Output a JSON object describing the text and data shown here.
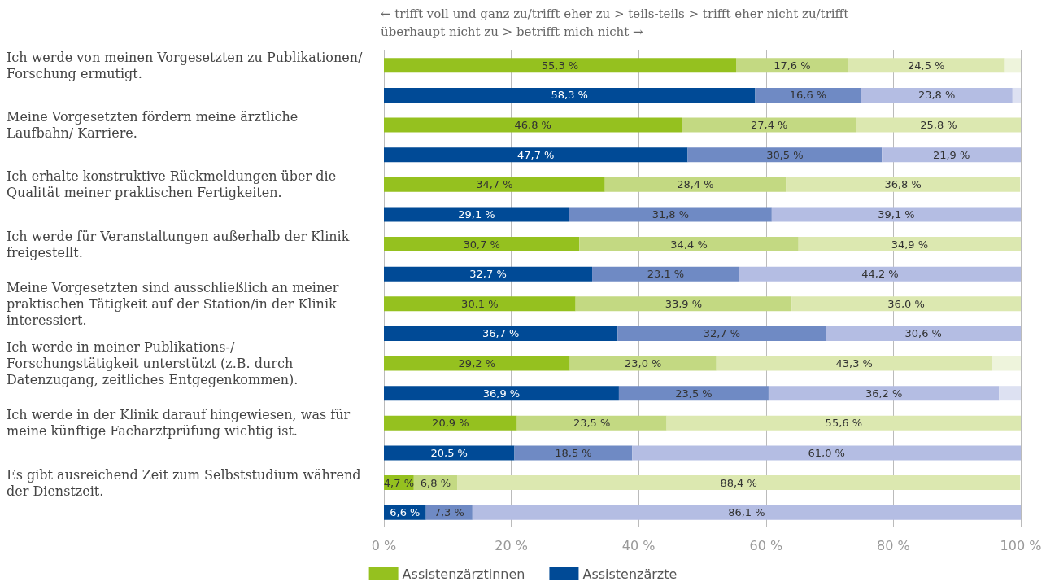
{
  "chart_data": {
    "type": "bar",
    "orientation": "horizontal",
    "stacked": true,
    "annotations": [
      "← trifft voll und ganz zu/trifft eher zu > teils-teils > trifft eher nicht zu/trifft überhaupt nicht zu > betrifft mich nicht →"
    ],
    "categories": [
      "Ich werde von meinen Vorgesetzten zu Publikationen/ Forschung ermutigt.",
      null,
      "Meine Vorgesetzten fördern meine ärztliche Laufbahn/ Karriere.",
      null,
      "Ich erhalte konstruktive Rückmeldungen über die Qualität meiner praktischen Fertigkeiten.",
      null,
      "Ich werde für Veranstaltungen außerhalb der Klinik freigestellt.",
      null,
      "Meine Vorgesetzten sind ausschließlich an meiner praktischen Tätigkeit auf der Station/in der Klinik interessiert.",
      null,
      "Ich werde in meiner Publikations-/Forschungstätigkeit unterstützt (z.B. durch Datenzugang, zeitliches Entgegenkommen).",
      null,
      "Ich werde in der Klinik darauf hingewiesen, was für meine künftige Facharztprüfung wichtig ist.",
      null,
      "Es gibt ausreichend Zeit zum Selbststudium während der Dienstzeit.",
      null
    ],
    "series": [
      {
        "name": "Assistenzärztinnen",
        "color": "#95c11f",
        "values": [
          55.3,
          null,
          46.8,
          null,
          34.7,
          null,
          30.7,
          null,
          30.1,
          null,
          29.2,
          null,
          20.9,
          null,
          4.7,
          null
        ],
        "value_labels": [
          "55,3 %",
          null,
          "46,8 %",
          null,
          "34,7 %",
          null,
          "30,7 %",
          null,
          "30,1 %",
          null,
          "29,2 %",
          null,
          "20,9 %",
          null,
          "4,7 %",
          null
        ]
      },
      {
        "color": "#c3d982",
        "values": [
          17.6,
          null,
          27.4,
          null,
          28.4,
          null,
          34.4,
          null,
          33.9,
          null,
          23.0,
          null,
          23.5,
          null,
          6.8,
          null
        ],
        "value_labels": [
          "17,6 %",
          null,
          "27,4 %",
          null,
          "28,4 %",
          null,
          "34,4 %",
          null,
          "33,9 %",
          null,
          "23,0 %",
          null,
          "23,5 %",
          null,
          "6,8 %",
          null
        ]
      },
      {
        "color": "#dce8b0",
        "values": [
          24.5,
          null,
          25.8,
          null,
          36.8,
          null,
          34.9,
          null,
          36.0,
          null,
          43.3,
          null,
          55.6,
          null,
          88.4,
          null
        ],
        "value_labels": [
          "24,5 %",
          null,
          "25,8 %",
          null,
          "36,8 %",
          null,
          "34,9 %",
          null,
          "36,0 %",
          null,
          "43,3 %",
          null,
          "55,6 %",
          null,
          "88,4 %",
          null
        ]
      },
      {
        "color": "#eef4dc",
        "values": [
          2.6,
          null,
          null,
          null,
          null,
          null,
          null,
          null,
          null,
          null,
          4.5,
          null,
          null,
          null,
          null,
          null
        ]
      },
      {
        "name": "Assistenzärzte",
        "color": "#004a96",
        "values": [
          null,
          58.3,
          null,
          47.7,
          null,
          29.1,
          null,
          32.7,
          null,
          36.7,
          null,
          36.9,
          null,
          20.5,
          null,
          6.6
        ],
        "value_labels": [
          null,
          "58,3 %",
          null,
          "47,7 %",
          null,
          "29,1 %",
          null,
          "32,7 %",
          null,
          "36,7 %",
          null,
          "36,9 %",
          null,
          "20,5 %",
          null,
          "6,6 %"
        ]
      },
      {
        "color": "#6f8ac4",
        "values": [
          null,
          16.6,
          null,
          30.5,
          null,
          31.8,
          null,
          23.1,
          null,
          32.7,
          null,
          23.5,
          null,
          18.5,
          null,
          7.3
        ],
        "value_labels": [
          null,
          "16,6 %",
          null,
          "30,5 %",
          null,
          "31,8 %",
          null,
          "23,1 %",
          null,
          "32,7 %",
          null,
          "23,5 %",
          null,
          "18,5 %",
          null,
          "7,3 %"
        ]
      },
      {
        "color": "#b4bde3",
        "values": [
          null,
          23.8,
          null,
          21.9,
          null,
          39.1,
          null,
          44.2,
          null,
          30.6,
          null,
          36.2,
          null,
          61.0,
          null,
          86.1
        ],
        "value_labels": [
          null,
          "23,8 %",
          null,
          "21,9 %",
          null,
          "39,1 %",
          null,
          "44,2 %",
          null,
          "30,6 %",
          null,
          "36,2 %",
          null,
          "61,0 %",
          null,
          "86,1 %"
        ]
      },
      {
        "color": "#dde1f2",
        "values": [
          null,
          1.3,
          null,
          null,
          null,
          null,
          null,
          null,
          null,
          null,
          null,
          3.4,
          null,
          null,
          null,
          null
        ]
      }
    ],
    "xlim": [
      0,
      100
    ],
    "xticks": [
      {
        "value": 0,
        "label": "0 %"
      },
      {
        "value": 20,
        "label": "20 %"
      },
      {
        "value": 40,
        "label": "40 %"
      },
      {
        "value": 60,
        "label": "60 %"
      },
      {
        "value": 80,
        "label": "80 %"
      },
      {
        "value": 100,
        "label": "100 %"
      }
    ],
    "grid": "x",
    "legend": "bottom"
  }
}
